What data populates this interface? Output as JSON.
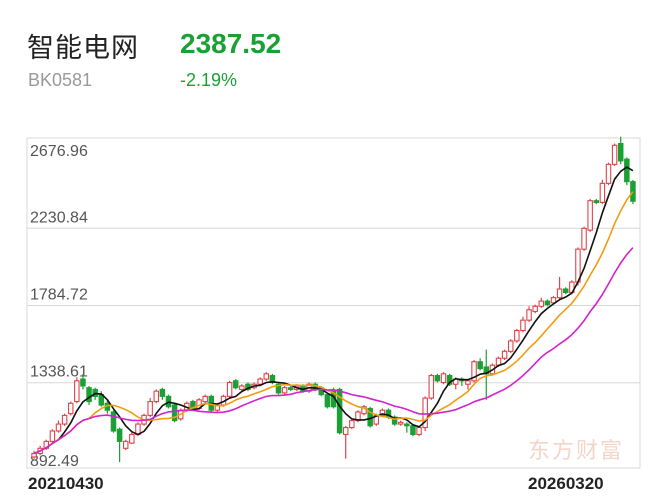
{
  "header": {
    "name": "智能电网",
    "code": "BK0581",
    "price": "2387.52",
    "change": "-2.19%"
  },
  "colors": {
    "up": "#e0434b",
    "down": "#1aa034",
    "ma5": "#111111",
    "ma10": "#f39c12",
    "ma20": "#d422cc",
    "grid": "#d8d8d8"
  },
  "watermark": "东方财富",
  "chart_data": {
    "type": "candlestick",
    "y_ticks": [
      "2676.96",
      "2230.84",
      "1784.72",
      "1338.61",
      "892.49"
    ],
    "ylim": [
      892.49,
      2676.96
    ],
    "x_start_label": "20210430",
    "x_end_label": "20260320",
    "grid": true,
    "candles": [
      [
        930,
        910,
        945,
        900
      ],
      [
        960,
        930,
        975,
        920
      ],
      [
        1000,
        960,
        1010,
        950
      ],
      [
        1060,
        1000,
        1070,
        990
      ],
      [
        1100,
        1060,
        1120,
        1050
      ],
      [
        1150,
        1100,
        1160,
        1090
      ],
      [
        1220,
        1160,
        1230,
        1150
      ],
      [
        1350,
        1230,
        1370,
        1220
      ],
      [
        1320,
        1360,
        1390,
        1300
      ],
      [
        1230,
        1310,
        1320,
        1210
      ],
      [
        1260,
        1300,
        1310,
        1240
      ],
      [
        1210,
        1270,
        1290,
        1200
      ],
      [
        1180,
        1220,
        1240,
        1160
      ],
      [
        1060,
        1170,
        1180,
        1050
      ],
      [
        1000,
        1070,
        1080,
        880
      ],
      [
        1000,
        960,
        1010,
        950
      ],
      [
        1040,
        990,
        1050,
        985
      ],
      [
        1100,
        1040,
        1110,
        1030
      ],
      [
        1150,
        1100,
        1160,
        1090
      ],
      [
        1230,
        1150,
        1250,
        1140
      ],
      [
        1290,
        1230,
        1300,
        1220
      ],
      [
        1260,
        1300,
        1310,
        1240
      ],
      [
        1200,
        1260,
        1270,
        1190
      ],
      [
        1120,
        1210,
        1220,
        1110
      ],
      [
        1180,
        1130,
        1190,
        1120
      ],
      [
        1220,
        1180,
        1230,
        1170
      ],
      [
        1190,
        1230,
        1240,
        1180
      ],
      [
        1240,
        1190,
        1250,
        1180
      ],
      [
        1260,
        1230,
        1270,
        1220
      ],
      [
        1180,
        1260,
        1270,
        1170
      ],
      [
        1210,
        1180,
        1220,
        1170
      ],
      [
        1260,
        1210,
        1270,
        1200
      ],
      [
        1340,
        1260,
        1350,
        1250
      ],
      [
        1310,
        1350,
        1360,
        1300
      ],
      [
        1320,
        1300,
        1330,
        1290
      ],
      [
        1300,
        1330,
        1340,
        1290
      ],
      [
        1330,
        1310,
        1340,
        1300
      ],
      [
        1360,
        1330,
        1370,
        1320
      ],
      [
        1390,
        1360,
        1400,
        1350
      ],
      [
        1340,
        1380,
        1390,
        1330
      ],
      [
        1280,
        1330,
        1340,
        1270
      ],
      [
        1310,
        1280,
        1320,
        1270
      ],
      [
        1300,
        1310,
        1320,
        1290
      ],
      [
        1320,
        1300,
        1330,
        1290
      ],
      [
        1290,
        1320,
        1330,
        1280
      ],
      [
        1330,
        1290,
        1340,
        1280
      ],
      [
        1300,
        1330,
        1340,
        1290
      ],
      [
        1270,
        1310,
        1320,
        1260
      ],
      [
        1200,
        1270,
        1280,
        1190
      ],
      [
        1200,
        1290,
        1310,
        1190
      ],
      [
        1050,
        1300,
        1310,
        1040
      ],
      [
        1080,
        1040,
        1090,
        900
      ],
      [
        1120,
        1080,
        1130,
        1070
      ],
      [
        1170,
        1120,
        1180,
        1110
      ],
      [
        1200,
        1160,
        1210,
        1150
      ],
      [
        1090,
        1190,
        1200,
        1080
      ],
      [
        1150,
        1100,
        1160,
        1090
      ],
      [
        1180,
        1150,
        1190,
        1140
      ],
      [
        1140,
        1180,
        1190,
        1130
      ],
      [
        1100,
        1140,
        1150,
        1090
      ],
      [
        1110,
        1100,
        1120,
        1090
      ],
      [
        1090,
        1100,
        1110,
        1050
      ],
      [
        1040,
        1090,
        1100,
        1030
      ],
      [
        1080,
        1040,
        1090,
        1030
      ],
      [
        1250,
        1080,
        1260,
        1060
      ],
      [
        1380,
        1250,
        1390,
        1240
      ],
      [
        1350,
        1380,
        1390,
        1340
      ],
      [
        1390,
        1340,
        1400,
        1330
      ],
      [
        1330,
        1380,
        1390,
        1320
      ],
      [
        1360,
        1330,
        1370,
        1300
      ],
      [
        1350,
        1360,
        1370,
        1320
      ],
      [
        1350,
        1330,
        1360,
        1300
      ],
      [
        1460,
        1350,
        1470,
        1340
      ],
      [
        1420,
        1460,
        1480,
        1410
      ],
      [
        1390,
        1430,
        1530,
        1240
      ],
      [
        1440,
        1390,
        1450,
        1380
      ],
      [
        1480,
        1440,
        1490,
        1430
      ],
      [
        1520,
        1480,
        1530,
        1470
      ],
      [
        1580,
        1520,
        1590,
        1510
      ],
      [
        1640,
        1580,
        1650,
        1570
      ],
      [
        1700,
        1640,
        1720,
        1630
      ],
      [
        1760,
        1700,
        1780,
        1690
      ],
      [
        1780,
        1750,
        1790,
        1740
      ],
      [
        1810,
        1780,
        1830,
        1770
      ],
      [
        1790,
        1810,
        1820,
        1780
      ],
      [
        1830,
        1800,
        1840,
        1790
      ],
      [
        1880,
        1830,
        1950,
        1820
      ],
      [
        1860,
        1880,
        1890,
        1850
      ],
      [
        1920,
        1860,
        1930,
        1850
      ],
      [
        2110,
        1920,
        2120,
        1900
      ],
      [
        2230,
        2110,
        2240,
        2100
      ],
      [
        2390,
        2220,
        2400,
        2210
      ],
      [
        2380,
        2390,
        2400,
        2370
      ],
      [
        2490,
        2380,
        2510,
        2370
      ],
      [
        2600,
        2490,
        2610,
        2480
      ],
      [
        2710,
        2600,
        2720,
        2590
      ],
      [
        2620,
        2720,
        2760,
        2600
      ],
      [
        2500,
        2630,
        2640,
        2480
      ],
      [
        2387,
        2500,
        2510,
        2370
      ]
    ],
    "ma_series": [
      {
        "key": "ma5",
        "period": 5
      },
      {
        "key": "ma10",
        "period": 10
      },
      {
        "key": "ma20",
        "period": 20
      }
    ]
  }
}
